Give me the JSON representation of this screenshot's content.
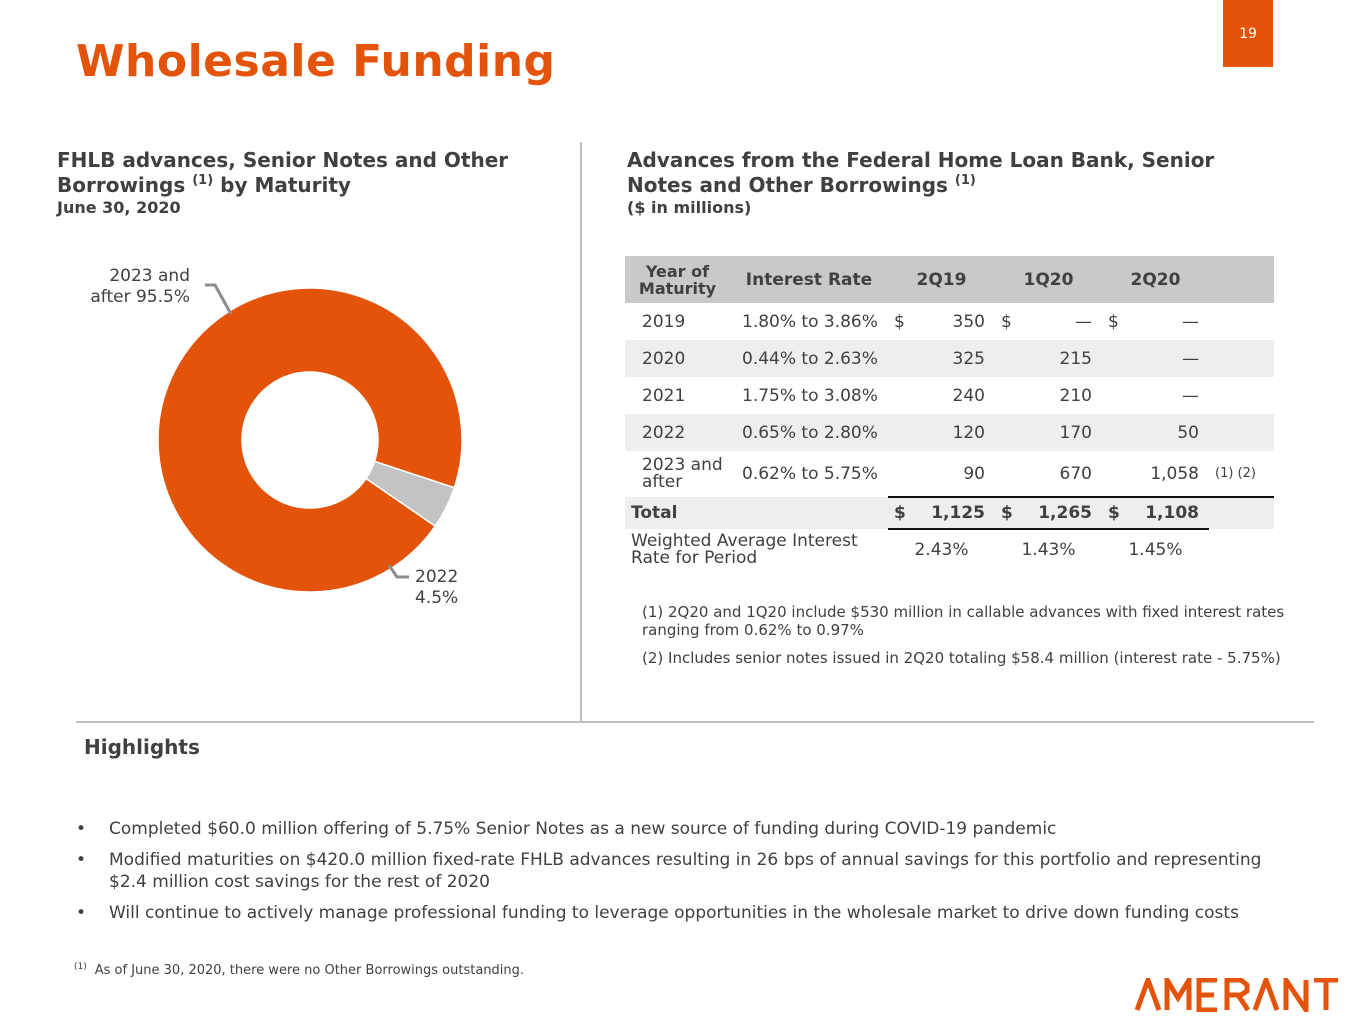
{
  "header": {
    "title": "Wholesale Funding",
    "page_number": "19"
  },
  "left_section": {
    "title_part1": "FHLB advances, Senior Notes and Other Borrowings",
    "title_sup": "(1)",
    "title_part2": "by Maturity",
    "subtitle": "June 30, 2020"
  },
  "chart_data": {
    "type": "pie",
    "variant": "donut",
    "title": "FHLB advances, Senior Notes and Other Borrowings (1) by Maturity",
    "subtitle": "June 30, 2020",
    "slices": [
      {
        "label_line1": "2023 and",
        "label_line2": "after 95.5%",
        "category": "2023 and after",
        "value": 95.5,
        "color": "#e3540a"
      },
      {
        "label_line1": "2022",
        "label_line2": "4.5%",
        "category": "2022",
        "value": 4.5,
        "color": "#c3c3c3"
      }
    ]
  },
  "right_section": {
    "title_line1": "Advances from the Federal Home Loan Bank, Senior",
    "title_line2": "Notes and Other Borrowings",
    "title_sup": "(1)",
    "subtitle": "($ in millions)"
  },
  "table": {
    "headers": {
      "year_line1": "Year of",
      "year_line2": "Maturity",
      "rate": "Interest Rate",
      "col1": "2Q19",
      "col2": "1Q20",
      "col3": "2Q20"
    },
    "rows": [
      {
        "year": "2019",
        "rate": "1.80% to 3.86%",
        "v1": "350",
        "v2": "—",
        "v3": "—",
        "d1": "$",
        "d2": "$",
        "d3": "$"
      },
      {
        "year": "2020",
        "rate": "0.44% to 2.63%",
        "v1": "325",
        "v2": "215",
        "v3": "—"
      },
      {
        "year": "2021",
        "rate": "1.75% to 3.08%",
        "v1": "240",
        "v2": "210",
        "v3": "—"
      },
      {
        "year": "2022",
        "rate": "0.65% to 2.80%",
        "v1": "120",
        "v2": "170",
        "v3": "50"
      },
      {
        "year_line1": "2023 and",
        "year_line2": "after",
        "rate": "0.62% to 5.75%",
        "v1": "90",
        "v2": "670",
        "v3": "1,058",
        "note": "(1) (2)"
      }
    ],
    "total": {
      "label": "Total",
      "d": "$",
      "v1": "1,125",
      "v2": "1,265",
      "v3": "1,108"
    },
    "wair": {
      "label_line1": "Weighted Average Interest",
      "label_line2": "Rate for Period",
      "v1": "2.43%",
      "v2": "1.43%",
      "v3": "1.45%"
    }
  },
  "table_notes": {
    "note1_line1": "(1) 2Q20 and 1Q20 include $530 million in callable advances with fixed interest rates",
    "note1_line2": "ranging from 0.62% to 0.97%",
    "note2": "(2) Includes senior notes issued in 2Q20 totaling $58.4 million (interest rate - 5.75%)"
  },
  "highlights": {
    "title": "Highlights",
    "bullets": [
      "Completed $60.0 million offering of 5.75% Senior Notes as a new source of funding during COVID-19 pandemic",
      "Modified maturities on $420.0 million fixed-rate FHLB advances resulting in 26 bps of annual savings for this portfolio and representing $2.4 million cost savings for the rest of 2020",
      "Will continue to actively manage professional funding to leverage opportunities in the wholesale market to drive down funding costs"
    ]
  },
  "footnote": {
    "marker": "(1)",
    "text": "As of June 30, 2020, there were no Other Borrowings outstanding."
  },
  "logo": {
    "text": "AMERANT",
    "color": "#e3540a"
  },
  "colors": {
    "accent": "#e3540a",
    "grey_slice": "#c3c3c3",
    "table_header": "#c9c9c9",
    "table_shade": "#eeeeee"
  }
}
